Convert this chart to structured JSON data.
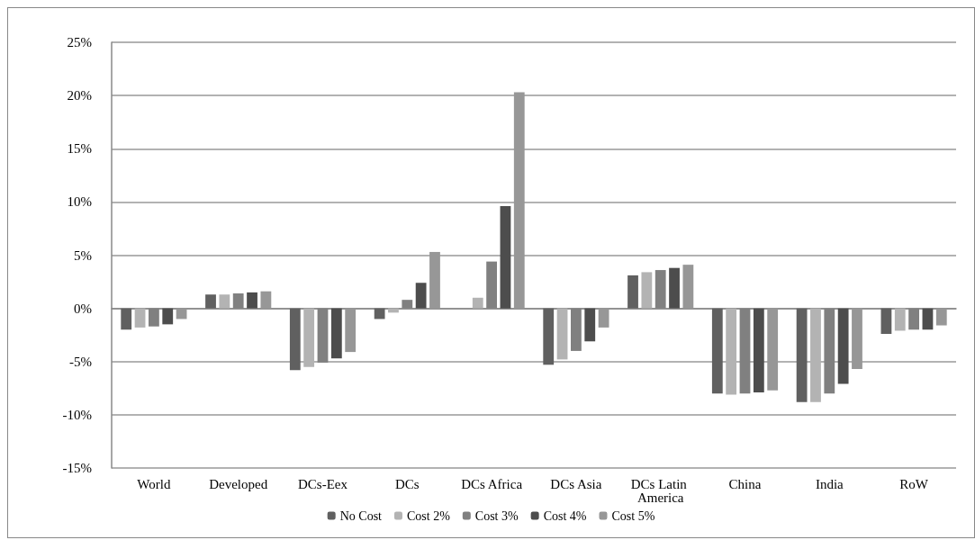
{
  "chart_data": {
    "type": "bar",
    "categories": [
      "World",
      "Developed",
      "DCs-Eex",
      "DCs",
      "DCs Africa",
      "DCs Asia",
      "DCs Latin America",
      "China",
      "India",
      "RoW"
    ],
    "series": [
      {
        "name": "No Cost",
        "color": "#606060",
        "values": [
          -2.0,
          1.3,
          -5.8,
          -1.0,
          0,
          -5.3,
          3.1,
          -8.0,
          -8.8,
          -2.4
        ]
      },
      {
        "name": "Cost 2%",
        "color": "#b3b3b3",
        "values": [
          -1.8,
          1.3,
          -5.5,
          -0.4,
          1.0,
          -4.8,
          3.4,
          -8.1,
          -8.8,
          -2.1
        ]
      },
      {
        "name": "Cost 3%",
        "color": "#808080",
        "values": [
          -1.7,
          1.4,
          -5.1,
          0.8,
          4.4,
          -4.0,
          3.6,
          -8.0,
          -8.0,
          -2.0
        ]
      },
      {
        "name": "Cost 4%",
        "color": "#4d4d4d",
        "values": [
          -1.5,
          1.5,
          -4.7,
          2.4,
          9.6,
          -3.1,
          3.8,
          -7.9,
          -7.1,
          -2.0
        ]
      },
      {
        "name": "Cost 5%",
        "color": "#979797",
        "values": [
          -1.0,
          1.6,
          -4.1,
          5.3,
          20.3,
          -1.8,
          4.1,
          -7.7,
          -5.7,
          -1.6
        ]
      }
    ],
    "ylim": [
      -15,
      25
    ],
    "yticks": [
      {
        "value": -15,
        "label": "-15%"
      },
      {
        "value": -10,
        "label": "-10%"
      },
      {
        "value": -5,
        "label": "-5%"
      },
      {
        "value": 0,
        "label": "0%"
      },
      {
        "value": 5,
        "label": "5%"
      },
      {
        "value": 10,
        "label": "10%"
      },
      {
        "value": 15,
        "label": "15%"
      },
      {
        "value": 20,
        "label": "20%"
      },
      {
        "value": 25,
        "label": "25%"
      }
    ],
    "grid": "y",
    "legend": "bottom"
  }
}
